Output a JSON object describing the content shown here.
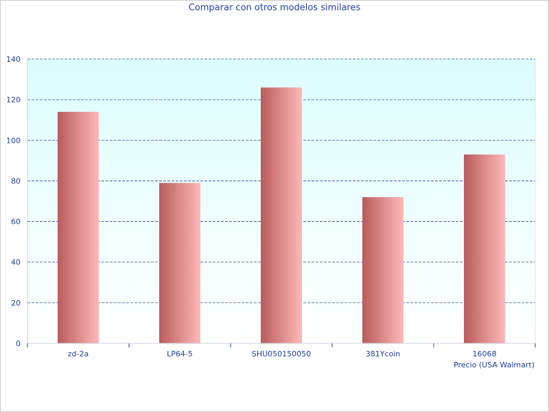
{
  "chart_data": {
    "type": "bar",
    "title": "Comparar con otros modelos similares",
    "categories": [
      "zd-2a",
      "LP64-5",
      "SHU050150050",
      "381Ycoin",
      "16068"
    ],
    "series": [
      {
        "name": "Precio (USA Walmart)",
        "values": [
          114,
          79,
          126,
          72,
          93
        ]
      }
    ],
    "xlabel": "Precio (USA Walmart)",
    "ylabel": "",
    "ylim": [
      0,
      140
    ],
    "yticks": [
      0,
      20,
      40,
      60,
      80,
      100,
      120,
      140
    ],
    "grid": true,
    "colors": {
      "bar_dark": "#b85c5c",
      "bar_light": "#ffb8b8",
      "plot_bg_top": "#dcfdfd",
      "plot_bg_bottom": "#ffffff",
      "grid": "#2f4f8f",
      "text": "#1f3f9f"
    }
  }
}
